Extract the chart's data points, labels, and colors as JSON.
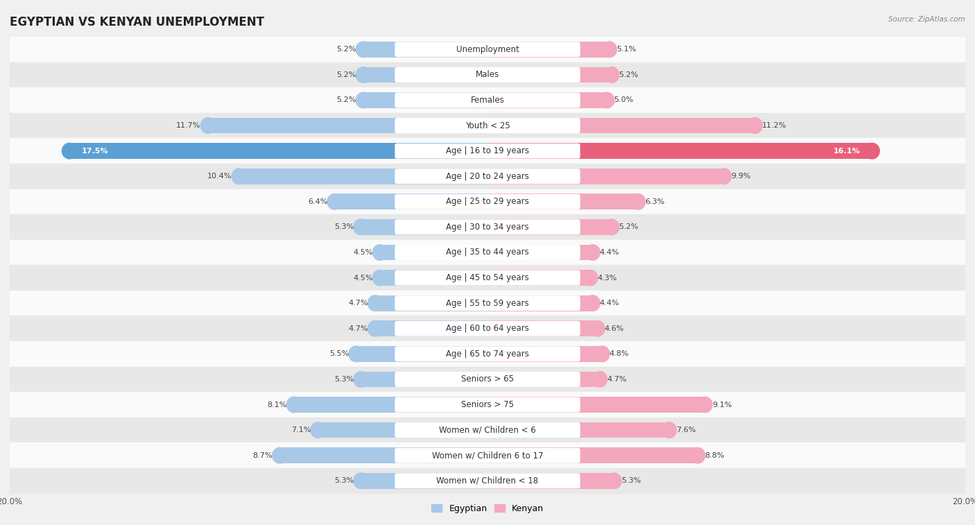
{
  "title": "EGYPTIAN VS KENYAN UNEMPLOYMENT",
  "source": "Source: ZipAtlas.com",
  "categories": [
    "Unemployment",
    "Males",
    "Females",
    "Youth < 25",
    "Age | 16 to 19 years",
    "Age | 20 to 24 years",
    "Age | 25 to 29 years",
    "Age | 30 to 34 years",
    "Age | 35 to 44 years",
    "Age | 45 to 54 years",
    "Age | 55 to 59 years",
    "Age | 60 to 64 years",
    "Age | 65 to 74 years",
    "Seniors > 65",
    "Seniors > 75",
    "Women w/ Children < 6",
    "Women w/ Children 6 to 17",
    "Women w/ Children < 18"
  ],
  "egyptian": [
    5.2,
    5.2,
    5.2,
    11.7,
    17.5,
    10.4,
    6.4,
    5.3,
    4.5,
    4.5,
    4.7,
    4.7,
    5.5,
    5.3,
    8.1,
    7.1,
    8.7,
    5.3
  ],
  "kenyan": [
    5.1,
    5.2,
    5.0,
    11.2,
    16.1,
    9.9,
    6.3,
    5.2,
    4.4,
    4.3,
    4.4,
    4.6,
    4.8,
    4.7,
    9.1,
    7.6,
    8.8,
    5.3
  ],
  "egyptian_color": "#a8c8e8",
  "kenyan_color": "#f4a8be",
  "egyptian_highlight_color": "#5b9fd4",
  "kenyan_highlight_color": "#e8607a",
  "bg_color": "#f0f0f0",
  "row_color_light": "#fafafa",
  "row_color_dark": "#e8e8e8",
  "axis_limit": 20.0,
  "bar_height": 0.62,
  "legend_labels": [
    "Egyptian",
    "Kenyan"
  ],
  "title_fontsize": 12,
  "label_fontsize": 8.5,
  "value_fontsize": 8.0
}
